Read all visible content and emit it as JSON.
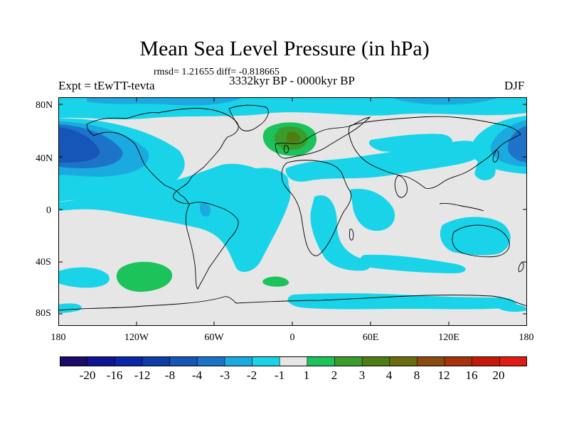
{
  "title": "Mean Sea Level Pressure (in hPa)",
  "stats": "rmsd= 1.21655 diff= -0.818665",
  "experiment": "Expt = tEwTT-tevta",
  "period": "3332kyr BP - 0000kyr BP",
  "season": "DJF",
  "lat_labels": [
    "80N",
    "40N",
    "0",
    "40S",
    "80S"
  ],
  "lon_labels": [
    "180",
    "120W",
    "60W",
    "0",
    "60E",
    "120E",
    "180"
  ],
  "colorbar": {
    "labels": [
      "-20",
      "-16",
      "-12",
      "-8",
      "-4",
      "-3",
      "-2",
      "-1",
      "1",
      "2",
      "3",
      "4",
      "8",
      "12",
      "16",
      "20"
    ],
    "colors": [
      "#1c0b6b",
      "#111493",
      "#0a27a8",
      "#0d3ca8",
      "#1656b8",
      "#1d73c8",
      "#1aaadf",
      "#19d4e8",
      "#e6e6e6",
      "#1cc25a",
      "#3a9c2b",
      "#4f7d14",
      "#6b6b10",
      "#8a4b0e",
      "#a8300d",
      "#c4180a",
      "#e01b13"
    ]
  },
  "colors": {
    "land_neutral": "#e6e6e6",
    "coast": "#000000",
    "cyan": "#19d4e8",
    "light_blue": "#1aaadf",
    "mid_blue": "#1d73c8",
    "dark_blue": "#1656b8",
    "green": "#1cc25a",
    "dark_green": "#3a9c2b",
    "olive": "#4f7d14"
  }
}
